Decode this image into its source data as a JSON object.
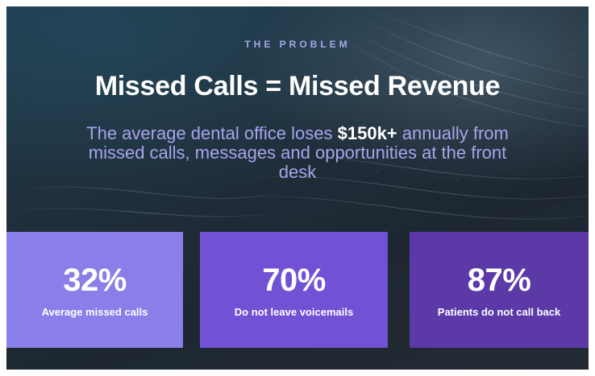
{
  "slide": {
    "kicker": "THE PROBLEM",
    "title": "Missed Calls = Missed Revenue",
    "subtitle": {
      "before": "The average dental office loses ",
      "highlight": "$150k+",
      "after": " annually from missed calls, messages and opportunities at the front desk"
    }
  },
  "stats": [
    {
      "value": "32%",
      "label": "Average missed calls",
      "color": "#8a7fe9"
    },
    {
      "value": "70%",
      "label": "Do not leave voicemails",
      "color": "#7152d4"
    },
    {
      "value": "87%",
      "label": "Patients do not call back",
      "color": "#5b3aa7"
    }
  ],
  "colors": {
    "kicker": "#a7a6e6",
    "subtitle": "#a9a4ea",
    "background": "#1f2d39"
  }
}
